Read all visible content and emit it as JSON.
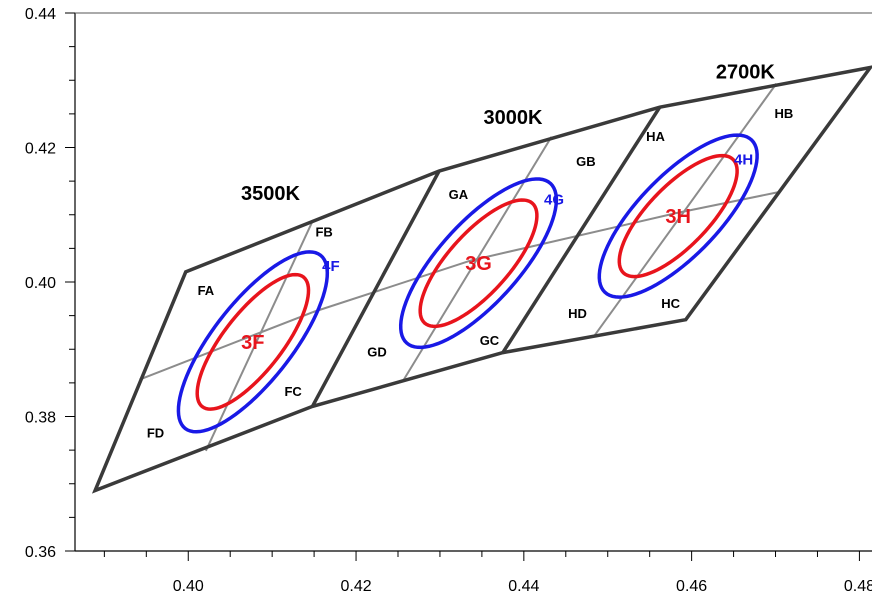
{
  "chart_data": {
    "type": "scatter",
    "title": "",
    "xlabel": "",
    "ylabel": "",
    "xlim": [
      0.3865,
      0.4815
    ],
    "ylim": [
      0.36,
      0.44
    ],
    "xticks": [
      0.4,
      0.42,
      0.44,
      0.46,
      0.48
    ],
    "xtick_labels": [
      "0.40",
      "0.42",
      "0.44",
      "0.46",
      "0.48"
    ],
    "yticks": [
      0.36,
      0.38,
      0.4,
      0.42,
      0.44
    ],
    "ytick_labels": [
      "0.36",
      "0.38",
      "0.40",
      "0.42",
      "0.44"
    ],
    "grid": false,
    "colors": {
      "boundary": "#3a3a3a",
      "divider": "#8c8c8c",
      "red": "#e8141c",
      "blue": "#1919e6"
    },
    "quadrangles": [
      {
        "name": "3500K",
        "corners": [
          [
            0.3997,
            0.4015
          ],
          [
            0.4148,
            0.409
          ],
          [
            0.4148,
            0.3815
          ],
          [
            0.3889,
            0.369
          ]
        ]
      },
      {
        "name": "3000K",
        "corners": [
          [
            0.4148,
            0.409
          ],
          [
            0.4299,
            0.4165
          ],
          [
            0.4375,
            0.3895
          ],
          [
            0.4148,
            0.3815
          ]
        ]
      },
      {
        "name": "2700K",
        "corners": [
          [
            0.4299,
            0.4165
          ],
          [
            0.4562,
            0.426
          ],
          [
            0.4813,
            0.4319
          ],
          [
            0.4593,
            0.3944
          ],
          [
            0.4375,
            0.3895
          ]
        ]
      }
    ],
    "outer_boundary": [
      [
        0.3889,
        0.369
      ],
      [
        0.3997,
        0.4015
      ],
      [
        0.4148,
        0.409
      ],
      [
        0.4299,
        0.4165
      ],
      [
        0.4562,
        0.426
      ],
      [
        0.4813,
        0.4319
      ],
      [
        0.4593,
        0.3944
      ],
      [
        0.4375,
        0.3895
      ],
      [
        0.4148,
        0.3815
      ]
    ],
    "cct_dividers": [
      [
        [
          0.4299,
          0.4165
        ],
        [
          0.4148,
          0.3815
        ]
      ],
      [
        [
          0.4562,
          0.426
        ],
        [
          0.4375,
          0.3895
        ]
      ]
    ],
    "sub_dividers": [
      [
        [
          0.4148,
          0.409
        ],
        [
          0.4021,
          0.3749
        ]
      ],
      [
        [
          0.4433,
          0.4216
        ],
        [
          0.4257,
          0.3855
        ]
      ],
      [
        [
          0.4701,
          0.4295
        ],
        [
          0.4484,
          0.392
        ]
      ],
      [
        [
          0.3942,
          0.3855
        ],
        [
          0.4148,
          0.3955
        ]
      ],
      [
        [
          0.4148,
          0.3955
        ],
        [
          0.4337,
          0.4032
        ]
      ],
      [
        [
          0.4337,
          0.4032
        ],
        [
          0.458,
          0.4102
        ]
      ],
      [
        [
          0.458,
          0.4102
        ],
        [
          0.4705,
          0.4134
        ]
      ]
    ],
    "cct_labels": [
      {
        "text": "3500K",
        "x": 0.4098,
        "y": 0.4132
      },
      {
        "text": "3000K",
        "x": 0.4387,
        "y": 0.4245
      },
      {
        "text": "2700K",
        "x": 0.4664,
        "y": 0.4313
      }
    ],
    "bin_labels": [
      {
        "text": "FA",
        "x": 0.4021,
        "y": 0.3988
      },
      {
        "text": "FB",
        "x": 0.4162,
        "y": 0.4075
      },
      {
        "text": "FC",
        "x": 0.4125,
        "y": 0.3838
      },
      {
        "text": "FD",
        "x": 0.3961,
        "y": 0.3776
      },
      {
        "text": "GA",
        "x": 0.4322,
        "y": 0.4131
      },
      {
        "text": "GB",
        "x": 0.4474,
        "y": 0.418
      },
      {
        "text": "GC",
        "x": 0.4359,
        "y": 0.3914
      },
      {
        "text": "GD",
        "x": 0.4225,
        "y": 0.3897
      },
      {
        "text": "HA",
        "x": 0.4557,
        "y": 0.4217
      },
      {
        "text": "HB",
        "x": 0.471,
        "y": 0.4251
      },
      {
        "text": "HC",
        "x": 0.4575,
        "y": 0.3969
      },
      {
        "text": "HD",
        "x": 0.4464,
        "y": 0.3954
      }
    ],
    "ellipses": [
      {
        "label": "3F",
        "color": "red",
        "cx": 0.4077,
        "cy": 0.3911,
        "rx": 0.0098,
        "ry": 0.0035,
        "rotation": -52
      },
      {
        "label": "4F",
        "color": "blue",
        "cx": 0.4077,
        "cy": 0.3911,
        "rx": 0.0131,
        "ry": 0.0047,
        "rotation": -52,
        "label_x": 0.417,
        "label_y": 0.4024
      },
      {
        "label": "3G",
        "color": "red",
        "cx": 0.4346,
        "cy": 0.4028,
        "rx": 0.0096,
        "ry": 0.0036,
        "rotation": -48
      },
      {
        "label": "4G",
        "color": "blue",
        "cx": 0.4346,
        "cy": 0.4028,
        "rx": 0.0128,
        "ry": 0.0048,
        "rotation": -48,
        "label_x": 0.4436,
        "label_y": 0.4123
      },
      {
        "label": "3H",
        "color": "red",
        "cx": 0.4584,
        "cy": 0.4098,
        "rx": 0.0094,
        "ry": 0.0036,
        "rotation": -46
      },
      {
        "label": "4H",
        "color": "blue",
        "cx": 0.4584,
        "cy": 0.4098,
        "rx": 0.0126,
        "ry": 0.0048,
        "rotation": -46,
        "label_x": 0.4662,
        "label_y": 0.4182
      }
    ]
  }
}
